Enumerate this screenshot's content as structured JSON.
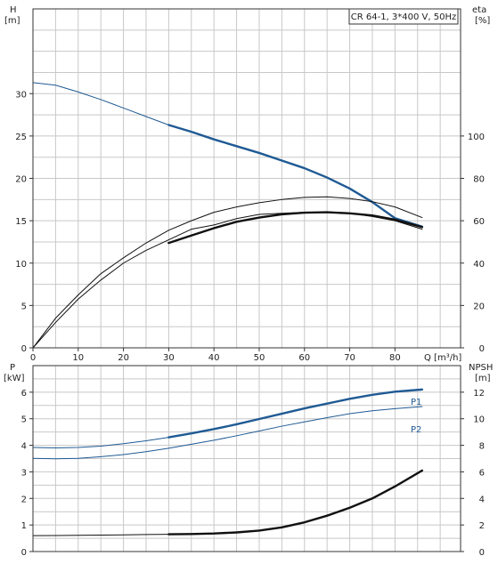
{
  "colors": {
    "head": "#1f5a94",
    "eta": "#111111",
    "p1": "#1f5a94",
    "p2": "#1f5a94",
    "npsh": "#111111",
    "grid": "#c8c8c8",
    "frame": "#333333"
  },
  "chart_data": [
    {
      "type": "line",
      "title": "CR 64-1, 3*400 V, 50Hz",
      "xlabel": "Q [m³/h]",
      "ylabel_left": "H\n[m]",
      "ylabel_right": "eta\n[%]",
      "xlim": [
        0,
        94.5
      ],
      "ylim_left": [
        0,
        40
      ],
      "ylim_right": [
        0,
        160
      ],
      "x_ticks": [
        0,
        10,
        20,
        30,
        40,
        50,
        60,
        70,
        80
      ],
      "y_ticks_left": [
        0,
        5,
        10,
        15,
        20,
        25,
        30
      ],
      "y_ticks_right": [
        0,
        20,
        40,
        60,
        80,
        100
      ],
      "grid": true,
      "series": [
        {
          "axis": "left",
          "color": "#1f5a94",
          "style": "thin",
          "x": [
            0,
            5,
            10,
            15,
            20,
            25,
            30
          ],
          "y": [
            31.3,
            31.0,
            30.2,
            29.3,
            28.3,
            27.3,
            26.3
          ]
        },
        {
          "axis": "left",
          "color": "#1f5a94",
          "style": "thick",
          "x": [
            30,
            35,
            40,
            45,
            50,
            55,
            60,
            65,
            70,
            75,
            80,
            86
          ],
          "y": [
            26.3,
            25.5,
            24.6,
            23.8,
            23.0,
            22.1,
            21.2,
            20.1,
            18.8,
            17.2,
            15.3,
            14.3
          ]
        },
        {
          "axis": "right",
          "color": "#111111",
          "style": "thin",
          "x": [
            0,
            5,
            10,
            15,
            20,
            25,
            30,
            35,
            40,
            45,
            50,
            55,
            60,
            65,
            70,
            75,
            80,
            86
          ],
          "y": [
            0,
            12,
            23,
            32,
            40,
            46,
            51,
            56,
            58,
            61,
            63,
            63.5,
            64,
            64,
            63.5,
            62,
            60,
            56
          ]
        },
        {
          "axis": "right",
          "color": "#111111",
          "style": "thin",
          "x": [
            0,
            5,
            10,
            15,
            20,
            25,
            30,
            35,
            40,
            45,
            50,
            55,
            60,
            65,
            70,
            75,
            80,
            86
          ],
          "y": [
            0,
            14,
            25,
            35,
            42.5,
            49.5,
            55.5,
            60,
            64,
            66.5,
            68.5,
            70,
            71,
            71.3,
            70.5,
            69,
            66.5,
            61.5
          ]
        },
        {
          "axis": "right",
          "color": "#111111",
          "style": "thick",
          "x": [
            30,
            35,
            40,
            45,
            50,
            55,
            60,
            65,
            70,
            75,
            80,
            86
          ],
          "y": [
            49.5,
            53,
            56.5,
            59.5,
            61.5,
            63,
            63.8,
            64,
            63.5,
            62.5,
            60.5,
            57
          ]
        }
      ]
    },
    {
      "type": "line",
      "xlabel": "",
      "ylabel_left": "P\n[kW]",
      "ylabel_right": "NPSH\n[m]",
      "xlim": [
        0,
        94.5
      ],
      "ylim_left": [
        0,
        7
      ],
      "ylim_right": [
        0,
        14
      ],
      "y_ticks_left": [
        0,
        1,
        2,
        3,
        4,
        5,
        6
      ],
      "y_ticks_right": [
        0,
        2,
        4,
        6,
        8,
        10,
        12
      ],
      "grid": true,
      "series": [
        {
          "name": "P1",
          "axis": "left",
          "color": "#1f5a94",
          "style": "thin",
          "x": [
            0,
            5,
            10,
            15,
            20,
            25,
            30
          ],
          "y": [
            3.92,
            3.9,
            3.92,
            3.97,
            4.06,
            4.17,
            4.3
          ]
        },
        {
          "name": "P1",
          "axis": "left",
          "color": "#1f5a94",
          "style": "thick",
          "x": [
            30,
            35,
            40,
            45,
            50,
            55,
            60,
            65,
            70,
            75,
            80,
            86
          ],
          "y": [
            4.3,
            4.45,
            4.61,
            4.79,
            4.99,
            5.19,
            5.39,
            5.57,
            5.75,
            5.9,
            6.02,
            6.1
          ]
        },
        {
          "name": "P2",
          "axis": "left",
          "color": "#1f5a94",
          "style": "thin",
          "x": [
            0,
            5,
            10,
            15,
            20,
            25,
            30,
            35,
            40,
            45,
            50,
            55,
            60,
            65,
            70,
            75,
            80,
            86
          ],
          "y": [
            3.51,
            3.49,
            3.51,
            3.57,
            3.65,
            3.76,
            3.89,
            4.04,
            4.19,
            4.36,
            4.54,
            4.72,
            4.88,
            5.04,
            5.19,
            5.3,
            5.38,
            5.46
          ]
        },
        {
          "name": "NPSH",
          "axis": "right",
          "color": "#111111",
          "style": "thin",
          "x": [
            0,
            5,
            10,
            15,
            20,
            25,
            30
          ],
          "y": [
            1.2,
            1.21,
            1.22,
            1.24,
            1.26,
            1.28,
            1.3
          ]
        },
        {
          "name": "NPSH",
          "axis": "right",
          "color": "#111111",
          "style": "thick",
          "x": [
            30,
            35,
            40,
            45,
            50,
            55,
            60,
            65,
            70,
            75,
            80,
            86
          ],
          "y": [
            1.3,
            1.32,
            1.36,
            1.44,
            1.58,
            1.82,
            2.2,
            2.7,
            3.3,
            4.0,
            4.9,
            6.1
          ]
        }
      ],
      "labels": [
        {
          "text": "P1",
          "series": "P1"
        },
        {
          "text": "P2",
          "series": "P2"
        }
      ]
    }
  ]
}
